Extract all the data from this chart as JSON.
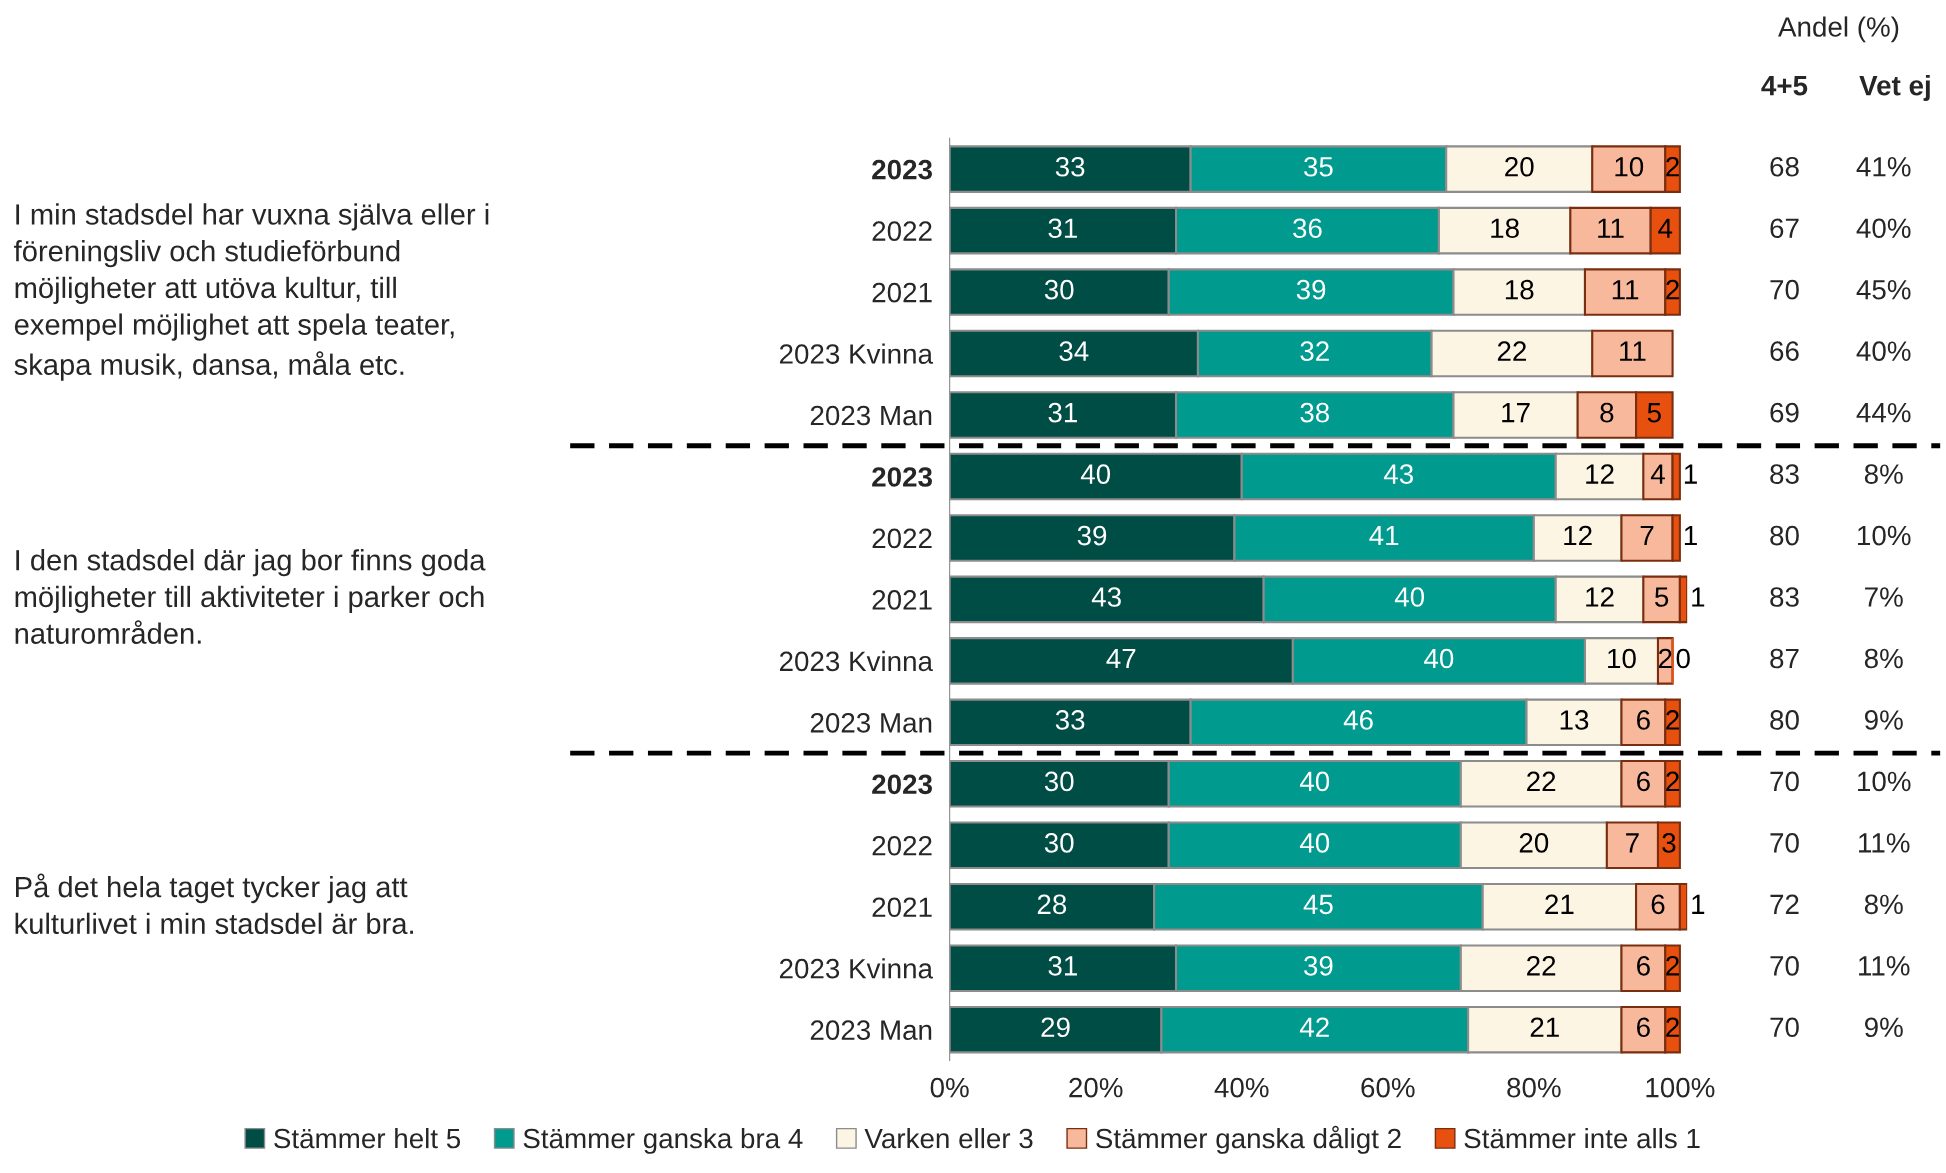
{
  "chart_data": {
    "type": "bar",
    "orientation": "horizontal",
    "stacked": true,
    "categories": [
      "2023",
      "2022",
      "2021",
      "2023 Kvinna",
      "2023 Man",
      "2023",
      "2022",
      "2021",
      "2023 Kvinna",
      "2023 Man",
      "2023",
      "2022",
      "2021",
      "2023 Kvinna",
      "2023 Man"
    ],
    "series": [
      {
        "name": "Stämmer helt 5",
        "color": "#004d45",
        "values": [
          33,
          31,
          30,
          34,
          31,
          40,
          39,
          43,
          47,
          33,
          30,
          30,
          28,
          31,
          29
        ],
        "value_labels": [
          "33",
          "31",
          "30",
          "34",
          "31",
          "40",
          "39",
          "43",
          "47",
          "33",
          "30",
          "30",
          "28",
          "31",
          "29"
        ]
      },
      {
        "name": "Stämmer ganska bra 4",
        "color": "#009a8e",
        "values": [
          35,
          36,
          39,
          32,
          38,
          43,
          41,
          40,
          40,
          46,
          40,
          40,
          45,
          39,
          42
        ],
        "value_labels": [
          "35",
          "36",
          "39",
          "32",
          "38",
          "43",
          "41",
          "40",
          "40",
          "46",
          "40",
          "40",
          "45",
          "39",
          "42"
        ]
      },
      {
        "name": "Varken eller 3",
        "color": "#fdf5e3",
        "values": [
          20,
          18,
          18,
          22,
          17,
          12,
          12,
          12,
          10,
          13,
          22,
          20,
          21,
          22,
          21
        ],
        "value_labels": [
          "20",
          "18",
          "18",
          "22",
          "17",
          "12",
          "12",
          "12",
          "10",
          "13",
          "22",
          "20",
          "21",
          "22",
          "21"
        ]
      },
      {
        "name": "Stämmer ganska dåligt 2",
        "color": "#f8b89c",
        "values": [
          10,
          11,
          11,
          11,
          8,
          4,
          7,
          5,
          2,
          6,
          6,
          7,
          6,
          6,
          6
        ],
        "value_labels": [
          "10",
          "11",
          "11",
          "11",
          "8",
          "4",
          "7",
          "5",
          "2",
          "6",
          "6",
          "7",
          "6",
          "6",
          "6"
        ]
      },
      {
        "name": "Stämmer inte alls 1",
        "color": "#e8500f",
        "values": [
          2,
          4,
          2,
          null,
          5,
          1,
          1,
          1,
          0,
          2,
          2,
          3,
          1,
          2,
          2
        ],
        "value_labels": [
          "2",
          "4",
          "2",
          null,
          "5",
          "1",
          "1",
          "1",
          "0",
          "2",
          "2",
          "3",
          "1",
          "2",
          "2"
        ]
      }
    ],
    "xlim": [
      0,
      101
    ],
    "xticks": [
      {
        "value": 0,
        "label": "0%"
      },
      {
        "value": 20,
        "label": "20%"
      },
      {
        "value": 40,
        "label": "40%"
      },
      {
        "value": 60,
        "label": "60%"
      },
      {
        "value": 80,
        "label": "80%"
      },
      {
        "value": 100,
        "label": "100%"
      }
    ],
    "legend": "bottom",
    "grid": false,
    "annotations": [
      "I min stadsdel har vuxna själva eller i\nföreningsliv och studieförbund\nmöjligheter att utöva kultur, till\nexempel möjlighet att spela teater,\nskapa musik, dansa, måla etc.",
      "I den stadsdel där jag bor finns goda\nmöjligheter till aktiviteter i parker och\nnaturområden.",
      "På det hela taget tycker jag att\nkulturlivet i min stadsdel är bra.",
      "Andel (%)",
      "4+5",
      "Vet ej",
      "68",
      "41%",
      "67",
      "40%",
      "70",
      "45%",
      "66",
      "40%",
      "69",
      "44%",
      "83",
      "8%",
      "80",
      "10%",
      "83",
      "7%",
      "87",
      "8%",
      "80",
      "9%",
      "70",
      "10%",
      "70",
      "11%",
      "72",
      "8%",
      "70",
      "11%",
      "70",
      "9%"
    ]
  }
}
